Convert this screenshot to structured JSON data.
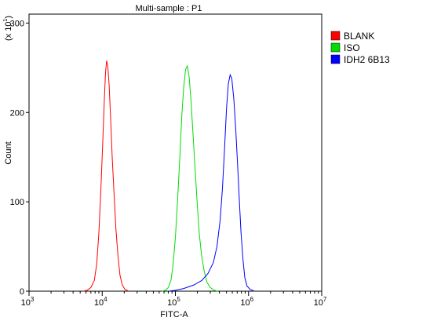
{
  "chart_data": {
    "type": "line",
    "title": "Multi-sample : P1",
    "xlabel": "FITC-A",
    "ylabel": "Count",
    "y_multiplier": "(x 10",
    "y_multiplier_exp": "1",
    "y_multiplier_close": ")",
    "x_scale": "log",
    "xlim": [
      1000,
      10000000
    ],
    "ylim": [
      0,
      310
    ],
    "x_ticks": [
      {
        "value": 1000,
        "base": "10",
        "exp": "3"
      },
      {
        "value": 10000,
        "base": "10",
        "exp": "4"
      },
      {
        "value": 100000,
        "base": "10",
        "exp": "5"
      },
      {
        "value": 1000000,
        "base": "10",
        "exp": "6"
      },
      {
        "value": 10000000,
        "base": "10",
        "exp": "7"
      }
    ],
    "y_ticks": [
      0,
      100,
      200,
      300
    ],
    "legend_position": "right, outside plot",
    "grid": false,
    "series": [
      {
        "name": "BLANK",
        "color": "#ff0000",
        "points": [
          [
            5500,
            0
          ],
          [
            6200,
            1
          ],
          [
            7000,
            4
          ],
          [
            7800,
            12
          ],
          [
            8400,
            30
          ],
          [
            9000,
            65
          ],
          [
            9600,
            115
          ],
          [
            10200,
            170
          ],
          [
            10700,
            215
          ],
          [
            11100,
            245
          ],
          [
            11500,
            258
          ],
          [
            11900,
            252
          ],
          [
            12400,
            232
          ],
          [
            13000,
            195
          ],
          [
            13700,
            150
          ],
          [
            14500,
            110
          ],
          [
            15400,
            70
          ],
          [
            16400,
            40
          ],
          [
            17500,
            18
          ],
          [
            18800,
            7
          ],
          [
            20500,
            2
          ],
          [
            23000,
            0
          ]
        ]
      },
      {
        "name": "ISO",
        "color": "#00dd00",
        "points": [
          [
            65000,
            0
          ],
          [
            73000,
            1
          ],
          [
            80000,
            4
          ],
          [
            87000,
            12
          ],
          [
            93000,
            30
          ],
          [
            100000,
            60
          ],
          [
            107000,
            100
          ],
          [
            115000,
            150
          ],
          [
            122000,
            195
          ],
          [
            130000,
            228
          ],
          [
            138000,
            248
          ],
          [
            146000,
            252
          ],
          [
            154000,
            240
          ],
          [
            163000,
            215
          ],
          [
            173000,
            180
          ],
          [
            185000,
            140
          ],
          [
            198000,
            100
          ],
          [
            212000,
            65
          ],
          [
            228000,
            40
          ],
          [
            248000,
            22
          ],
          [
            270000,
            10
          ],
          [
            300000,
            4
          ],
          [
            340000,
            1
          ],
          [
            380000,
            0
          ]
        ]
      },
      {
        "name": "IDH2 6B13",
        "color": "#0000ff",
        "points": [
          [
            80000,
            0
          ],
          [
            100000,
            1
          ],
          [
            130000,
            3
          ],
          [
            180000,
            7
          ],
          [
            230000,
            12
          ],
          [
            280000,
            20
          ],
          [
            330000,
            32
          ],
          [
            370000,
            50
          ],
          [
            410000,
            80
          ],
          [
            440000,
            115
          ],
          [
            470000,
            160
          ],
          [
            500000,
            205
          ],
          [
            530000,
            232
          ],
          [
            560000,
            242
          ],
          [
            590000,
            238
          ],
          [
            630000,
            215
          ],
          [
            670000,
            180
          ],
          [
            710000,
            140
          ],
          [
            750000,
            100
          ],
          [
            790000,
            65
          ],
          [
            840000,
            35
          ],
          [
            890000,
            15
          ],
          [
            950000,
            6
          ],
          [
            1050000,
            2
          ],
          [
            1200000,
            0
          ]
        ]
      }
    ]
  }
}
